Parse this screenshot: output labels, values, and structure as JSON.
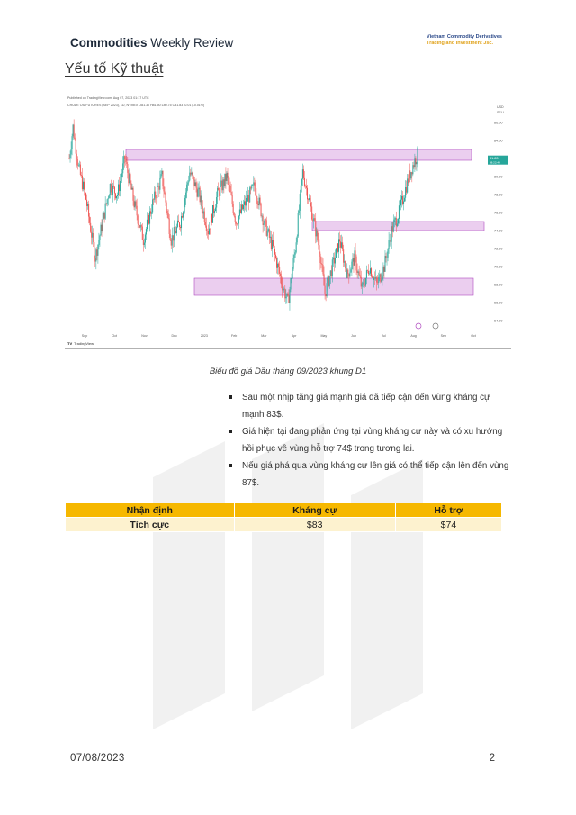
{
  "header": {
    "brand_bold": "Commodities",
    "brand_rest": " Weekly Review",
    "company_line1": "Vietnam Commodity Derivatives",
    "company_line2": "Trading and Investment Jsc."
  },
  "section_title": "Yếu tố Kỹ thuật",
  "chart": {
    "published": "Published on TradingView.com, Aug 07, 2023 01:17 UTC",
    "symbol_line": "CRUDE OIL FUTURES (SEP 2023), 1D, NYMEX  O81.30  H81.50  L80.75  C81.83  -0.01 (-0.01%)",
    "currency": "USD",
    "currency2": "SELL",
    "price_tag": "81.83",
    "price_tag_time": "08:22:44",
    "x_ticks": [
      "Sep",
      "Oct",
      "Nov",
      "Dec",
      "2023",
      "Feb",
      "Mar",
      "Apr",
      "May",
      "Jun",
      "Jul",
      "Aug",
      "Sep",
      "Oct"
    ],
    "y_ticks": [
      "86.00",
      "84.00",
      "82.00",
      "80.00",
      "78.00",
      "76.00",
      "74.00",
      "72.00",
      "70.00",
      "68.00",
      "66.00",
      "64.00"
    ],
    "logo_text": "TradingView",
    "colors": {
      "up": "#26a69a",
      "down": "#ef5350",
      "zone_fill": "#e7c6ec",
      "zone_border": "#b04bc0"
    }
  },
  "chart_data": {
    "type": "candlestick",
    "title": "CRUDE OIL FUTURES (SEP 2023), 1D, NYMEX",
    "ylim": [
      63,
      87
    ],
    "zones": [
      {
        "name": "resistance",
        "low": 81.8,
        "high": 83.0
      },
      {
        "name": "support",
        "low": 74.0,
        "high": 75.0
      },
      {
        "name": "support",
        "low": 66.8,
        "high": 68.7
      }
    ],
    "path_points": [
      [
        0,
        82
      ],
      [
        4,
        85.5
      ],
      [
        10,
        81
      ],
      [
        18,
        77.5
      ],
      [
        28,
        71
      ],
      [
        36,
        75
      ],
      [
        44,
        79
      ],
      [
        52,
        78
      ],
      [
        60,
        82
      ],
      [
        70,
        77
      ],
      [
        80,
        73
      ],
      [
        90,
        77
      ],
      [
        100,
        80
      ],
      [
        110,
        73
      ],
      [
        120,
        75
      ],
      [
        130,
        80.5
      ],
      [
        140,
        78
      ],
      [
        150,
        74
      ],
      [
        160,
        78
      ],
      [
        170,
        80
      ],
      [
        180,
        75
      ],
      [
        190,
        77
      ],
      [
        200,
        79
      ],
      [
        210,
        75
      ],
      [
        220,
        72
      ],
      [
        230,
        68
      ],
      [
        236,
        66
      ],
      [
        244,
        72
      ],
      [
        252,
        80.5
      ],
      [
        262,
        76
      ],
      [
        270,
        72
      ],
      [
        276,
        67
      ],
      [
        284,
        70
      ],
      [
        292,
        73
      ],
      [
        300,
        69
      ],
      [
        308,
        71
      ],
      [
        316,
        67.5
      ],
      [
        324,
        70
      ],
      [
        332,
        68
      ],
      [
        340,
        70
      ],
      [
        348,
        74
      ],
      [
        356,
        76
      ],
      [
        364,
        79
      ],
      [
        370,
        81
      ],
      [
        376,
        82.5
      ]
    ],
    "final_close": 81.83
  },
  "caption": "Biểu đồ giá Dầu tháng 09/2023 khung D1",
  "bullets": [
    "Sau một nhịp tăng giá mạnh giá đã tiếp cận đến vùng kháng cự mạnh 83$.",
    "Giá hiện tại đang phản ứng tại vùng kháng cự này và có xu hướng hồi phục về vùng hỗ trợ 74$ trong tương lai.",
    "Nếu giá phá qua vùng kháng cự lên giá có thể tiếp cận lên đến vùng 87$."
  ],
  "table": {
    "headers": [
      "Nhận định",
      "Kháng cự",
      "Hỗ trợ"
    ],
    "row": [
      "Tích cực",
      "$83",
      "$74"
    ]
  },
  "footer": {
    "date": "07/08/2023",
    "page": "2"
  }
}
